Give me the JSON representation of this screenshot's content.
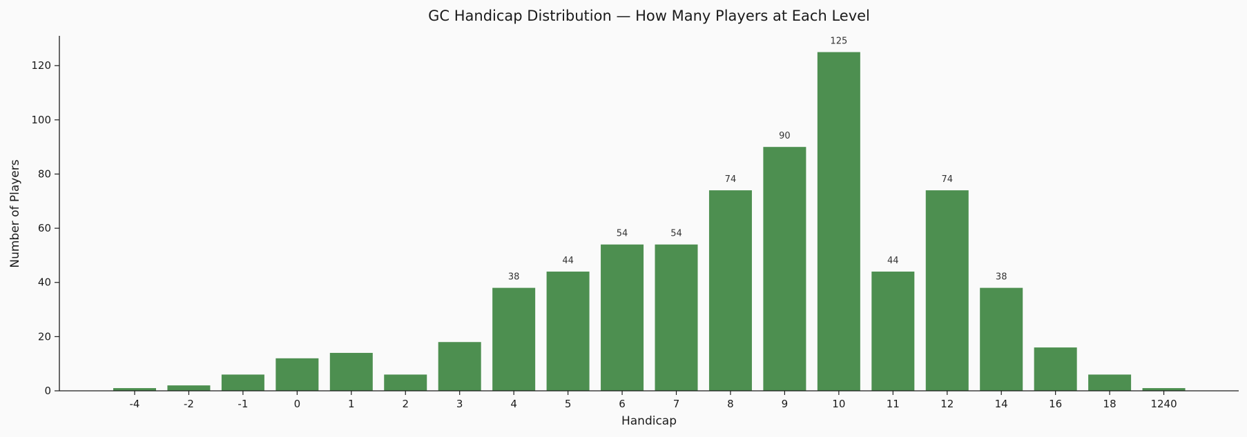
{
  "chart_data": {
    "type": "bar",
    "title": "GC Handicap Distribution — How Many Players at Each Level",
    "xlabel": "Handicap",
    "ylabel": "Number of Players",
    "categories": [
      "-4",
      "-2",
      "-1",
      "0",
      "1",
      "2",
      "3",
      "4",
      "5",
      "6",
      "7",
      "8",
      "9",
      "10",
      "11",
      "12",
      "14",
      "16",
      "18",
      "1240"
    ],
    "values": [
      1,
      2,
      6,
      12,
      14,
      6,
      18,
      38,
      44,
      54,
      54,
      74,
      90,
      125,
      44,
      74,
      38,
      16,
      6,
      1
    ],
    "data_labels": [
      "",
      "",
      "",
      "",
      "",
      "",
      "",
      "38",
      "44",
      "54",
      "54",
      "74",
      "90",
      "125",
      "44",
      "74",
      "38",
      "",
      "",
      ""
    ],
    "ylim": [
      0,
      131
    ],
    "yticks": [
      0,
      20,
      40,
      60,
      80,
      100,
      120
    ],
    "grid": false,
    "legend": "none",
    "bar_color": "#4d8f50",
    "background_color": "#fafafa"
  }
}
